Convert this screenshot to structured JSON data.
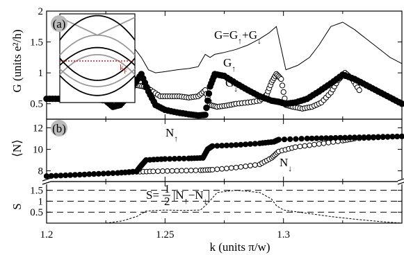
{
  "chart_data": [
    {
      "type": "scatter",
      "panel_label": "(a)",
      "ylabel": "G (units e²/h)",
      "xlim": [
        1.2,
        1.35
      ],
      "ylim": [
        0.25,
        2.0
      ],
      "yticks": [
        "0.5",
        "1",
        "1.5",
        "2"
      ],
      "xticks": [
        "1.2",
        "1.25",
        "1.3"
      ],
      "annotations": [
        {
          "text": "G=G↑+G↓",
          "x": 1.292,
          "y": 1.63
        },
        {
          "text": "G↑",
          "x": 1.284,
          "y": 1.16
        },
        {
          "text": "G↓",
          "x": 1.283,
          "y": 0.7
        }
      ],
      "series": [
        {
          "name": "G=G↑+G↓",
          "style": "thin-line",
          "x": [
            1.2,
            1.226,
            1.228,
            1.231,
            1.234,
            1.237,
            1.24,
            1.243,
            1.246,
            1.25,
            1.255,
            1.26,
            1.264,
            1.267,
            1.269,
            1.271,
            1.275,
            1.28,
            1.285,
            1.29,
            1.294,
            1.297,
            1.299,
            1.301,
            1.306,
            1.311,
            1.315,
            1.32,
            1.325,
            1.33,
            1.335,
            1.34,
            1.345,
            1.35
          ],
          "y": [
            0.58,
            0.6,
            0.85,
            1.35,
            1.45,
            1.4,
            1.25,
            1.05,
            1.0,
            1.02,
            1.05,
            1.07,
            1.1,
            1.3,
            1.25,
            1.3,
            1.33,
            1.38,
            1.45,
            1.55,
            1.65,
            1.75,
            1.4,
            1.05,
            1.12,
            1.25,
            1.45,
            1.75,
            1.82,
            1.7,
            1.55,
            1.4,
            1.25,
            1.15
          ]
        },
        {
          "name": "G↑",
          "style": "filled-circles",
          "x": [
            1.2,
            1.205,
            1.21,
            1.215,
            1.22,
            1.225,
            1.228,
            1.231,
            1.234,
            1.237,
            1.24,
            1.243,
            1.246,
            1.25,
            1.255,
            1.26,
            1.264,
            1.267,
            1.269,
            1.271,
            1.275,
            1.28,
            1.285,
            1.29,
            1.295,
            1.298,
            1.301,
            1.305,
            1.31,
            1.315,
            1.32,
            1.325,
            1.33,
            1.335,
            1.34,
            1.345,
            1.35
          ],
          "y": [
            0.58,
            0.58,
            0.58,
            0.58,
            0.58,
            0.55,
            0.45,
            0.48,
            0.6,
            0.82,
            0.98,
            0.7,
            0.48,
            0.4,
            0.36,
            0.33,
            0.31,
            0.32,
            0.78,
            0.98,
            0.95,
            0.83,
            0.72,
            0.62,
            0.55,
            0.53,
            0.5,
            0.52,
            0.58,
            0.7,
            0.83,
            0.97,
            0.9,
            0.8,
            0.7,
            0.6,
            0.5
          ]
        },
        {
          "name": "G↓",
          "style": "open-circles",
          "x": [
            1.2,
            1.21,
            1.22,
            1.226,
            1.229,
            1.232,
            1.235,
            1.238,
            1.241,
            1.244,
            1.248,
            1.252,
            1.256,
            1.26,
            1.264,
            1.267,
            1.269,
            1.272,
            1.276,
            1.28,
            1.285,
            1.29,
            1.293,
            1.295,
            1.297,
            1.299,
            1.301,
            1.304,
            1.308,
            1.312,
            1.316,
            1.32,
            1.323,
            1.326,
            1.329,
            1.332
          ],
          "y": [
            0.58,
            0.58,
            0.58,
            0.55,
            0.62,
            0.72,
            0.78,
            0.8,
            0.78,
            0.72,
            0.62,
            0.62,
            0.62,
            0.6,
            0.62,
            0.72,
            0.48,
            0.45,
            0.47,
            0.5,
            0.52,
            0.55,
            0.65,
            0.85,
            0.98,
            0.9,
            0.48,
            0.45,
            0.42,
            0.45,
            0.52,
            0.68,
            0.88,
            1.0,
            0.9,
            0.72
          ]
        }
      ],
      "inset": {
        "label": "k_F",
        "fermi_level": "red dotted",
        "bands": "gray and black dispersion curves"
      }
    },
    {
      "type": "scatter",
      "panel_label": "(b)",
      "ylabel": "⟨N⟩",
      "ylim": [
        7,
        12.8
      ],
      "yticks": [
        "8",
        "10",
        "12"
      ],
      "annotations": [
        {
          "text": "N↑",
          "x": 1.245,
          "y": 10.1
        },
        {
          "text": "N↓",
          "x": 1.296,
          "y": 7.0
        }
      ],
      "series": [
        {
          "name": "N↑",
          "style": "filled-circles",
          "x": [
            1.2,
            1.21,
            1.22,
            1.23,
            1.238,
            1.24,
            1.242,
            1.25,
            1.26,
            1.266,
            1.268,
            1.27,
            1.28,
            1.29,
            1.296,
            1.298,
            1.31,
            1.32,
            1.33,
            1.34,
            1.35
          ],
          "y": [
            7.5,
            7.6,
            7.7,
            7.8,
            7.95,
            8.5,
            9.0,
            9.1,
            9.15,
            9.2,
            10.0,
            10.3,
            10.4,
            10.55,
            10.7,
            10.9,
            11.0,
            11.05,
            11.1,
            11.15,
            11.2
          ]
        },
        {
          "name": "N↓",
          "style": "open-circles",
          "x": [
            1.2,
            1.21,
            1.22,
            1.23,
            1.238,
            1.245,
            1.255,
            1.265,
            1.27,
            1.28,
            1.29,
            1.295,
            1.298,
            1.305,
            1.315,
            1.325,
            1.33,
            1.34,
            1.35
          ],
          "y": [
            7.5,
            7.6,
            7.7,
            7.8,
            7.9,
            7.95,
            8.0,
            8.05,
            8.1,
            8.3,
            8.6,
            9.2,
            9.8,
            10.2,
            10.5,
            10.8,
            11.0,
            11.1,
            11.2
          ]
        }
      ]
    },
    {
      "type": "line",
      "ylabel": "S",
      "ylim": [
        0,
        1.9
      ],
      "yticks": [
        "0.5",
        "1",
        "1.5"
      ],
      "xlabel": "k (units π/w)",
      "reference_lines": [
        0.5,
        1.0,
        1.5
      ],
      "annotation": {
        "text": "S=½|N↑−N↓|",
        "x": 1.236,
        "y": 1.32
      },
      "series": [
        {
          "name": "S",
          "style": "dashed",
          "x": [
            1.2,
            1.225,
            1.232,
            1.238,
            1.242,
            1.25,
            1.258,
            1.265,
            1.268,
            1.272,
            1.28,
            1.29,
            1.295,
            1.297,
            1.3,
            1.31,
            1.32,
            1.33,
            1.34,
            1.35
          ],
          "y": [
            0.0,
            0.0,
            0.1,
            0.3,
            0.55,
            0.6,
            0.58,
            0.6,
            0.9,
            1.4,
            1.5,
            1.4,
            1.1,
            0.8,
            0.6,
            0.45,
            0.3,
            0.18,
            0.08,
            0.0
          ]
        }
      ]
    }
  ]
}
